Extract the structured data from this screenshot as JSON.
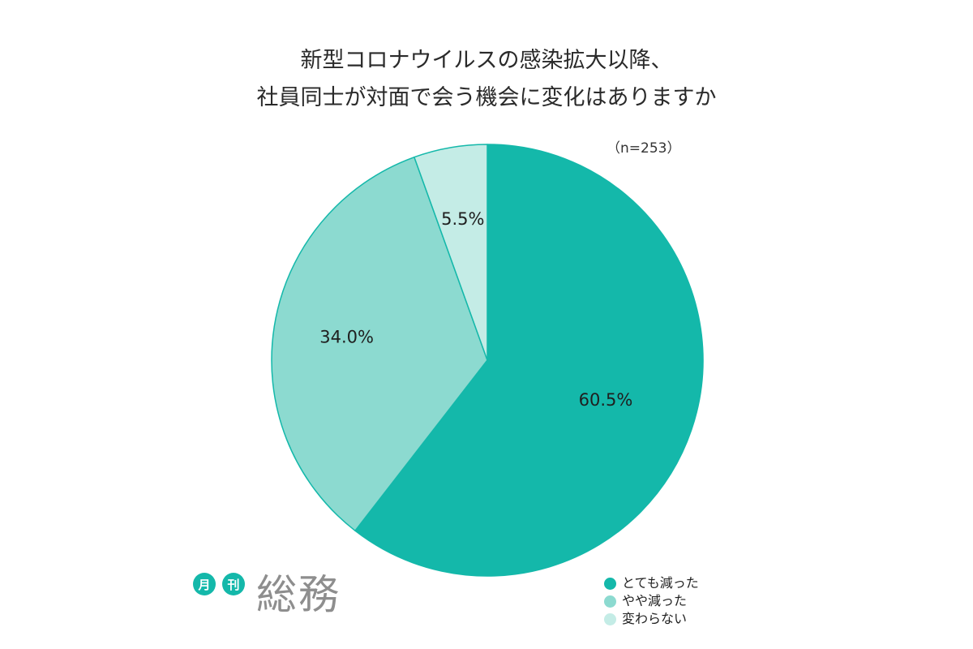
{
  "title": {
    "line1": "新型コロナウイルスの感染拡大以降、",
    "line2": "社員同士が対面で会う機会に変化はありますか"
  },
  "n_label": "（n=253）",
  "logo": {
    "badge1": "月",
    "badge2": "刊",
    "main": "総務"
  },
  "colors": {
    "dark": "#14b8aa",
    "medium": "#8cdad0",
    "light": "#c4ece6",
    "stroke": "#14b8aa"
  },
  "chart_data": {
    "type": "pie",
    "title": "新型コロナウイルスの感染拡大以降、社員同士が対面で会う機会に変化はありますか",
    "n": "（n=253）",
    "categories": [
      "とても減った",
      "やや減った",
      "変わらない"
    ],
    "values": [
      60.5,
      34.0,
      5.5
    ],
    "value_labels": [
      "60.5%",
      "34.0%",
      "5.5%"
    ],
    "colors": [
      "#14b8aa",
      "#8cdad0",
      "#c4ece6"
    ],
    "start_angle": "12 o'clock",
    "direction": "clockwise",
    "legend_position": "bottom-right"
  }
}
